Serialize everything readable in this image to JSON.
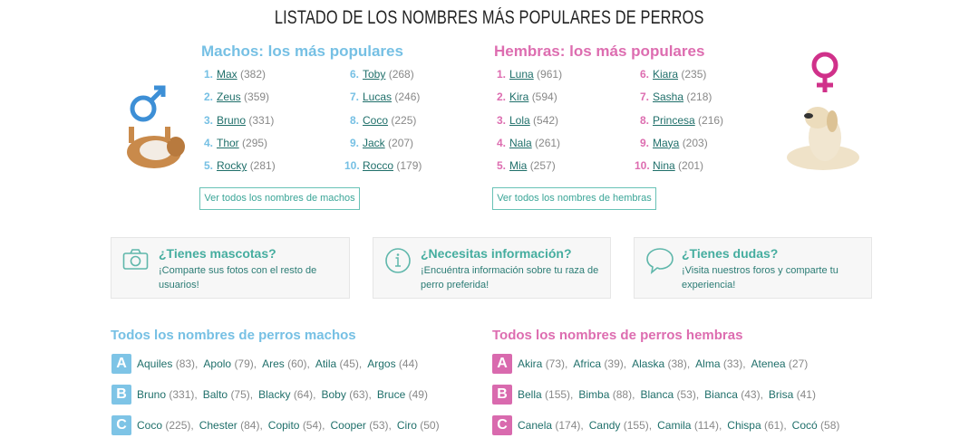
{
  "title": "LISTADO DE LOS NOMBRES MÁS POPULARES DE PERROS",
  "colors": {
    "male": "#76c0e4",
    "female": "#dd6db0",
    "teal": "#45ad9f",
    "link": "#1f6f6a"
  },
  "male": {
    "heading": "Machos: los más populares",
    "button": "Ver todos los nombres de machos",
    "icon": "male-symbol-icon",
    "top": [
      {
        "n": "1.",
        "name": "Max",
        "count": "(382)"
      },
      {
        "n": "2.",
        "name": "Zeus",
        "count": "(359)"
      },
      {
        "n": "3.",
        "name": "Bruno",
        "count": "(331)"
      },
      {
        "n": "4.",
        "name": "Thor",
        "count": "(295)"
      },
      {
        "n": "5.",
        "name": "Rocky",
        "count": "(281)"
      },
      {
        "n": "6.",
        "name": "Toby",
        "count": "(268)"
      },
      {
        "n": "7.",
        "name": "Lucas",
        "count": "(246)"
      },
      {
        "n": "8.",
        "name": "Coco",
        "count": "(225)"
      },
      {
        "n": "9.",
        "name": "Jack",
        "count": "(207)"
      },
      {
        "n": "10.",
        "name": "Rocco",
        "count": "(179)"
      }
    ]
  },
  "female": {
    "heading": "Hembras: los más populares",
    "button": "Ver todos los nombres de hembras",
    "icon": "female-symbol-icon",
    "top": [
      {
        "n": "1.",
        "name": "Luna",
        "count": "(961)"
      },
      {
        "n": "2.",
        "name": "Kira",
        "count": "(594)"
      },
      {
        "n": "3.",
        "name": "Lola",
        "count": "(542)"
      },
      {
        "n": "4.",
        "name": "Nala",
        "count": "(261)"
      },
      {
        "n": "5.",
        "name": "Mia",
        "count": "(257)"
      },
      {
        "n": "6.",
        "name": "Kiara",
        "count": "(235)"
      },
      {
        "n": "7.",
        "name": "Sasha",
        "count": "(218)"
      },
      {
        "n": "8.",
        "name": "Princesa",
        "count": "(216)"
      },
      {
        "n": "9.",
        "name": "Maya",
        "count": "(203)"
      },
      {
        "n": "10.",
        "name": "Nina",
        "count": "(201)"
      }
    ]
  },
  "cards": [
    {
      "title": "¿Tienes mascotas?",
      "text": "¡Comparte sus fotos con el resto de usuarios!",
      "icon": "camera-icon"
    },
    {
      "title": "¿Necesitas información?",
      "text": "¡Encuéntra información sobre tu raza de perro preferida!",
      "icon": "info-icon"
    },
    {
      "title": "¿Tienes dudas?",
      "text": "¡Visita nuestros foros y comparte tu experiencia!",
      "icon": "speech-bubble-icon"
    }
  ],
  "all_male": {
    "heading": "Todos los nombres de perros machos",
    "rows": [
      {
        "letter": "A",
        "names": [
          [
            "Aquiles",
            "(83)"
          ],
          [
            "Apolo",
            "(79)"
          ],
          [
            "Ares",
            "(60)"
          ],
          [
            "Atila",
            "(45)"
          ],
          [
            "Argos",
            "(44)"
          ]
        ]
      },
      {
        "letter": "B",
        "names": [
          [
            "Bruno",
            "(331)"
          ],
          [
            "Balto",
            "(75)"
          ],
          [
            "Blacky",
            "(64)"
          ],
          [
            "Boby",
            "(63)"
          ],
          [
            "Bruce",
            "(49)"
          ]
        ]
      },
      {
        "letter": "C",
        "names": [
          [
            "Coco",
            "(225)"
          ],
          [
            "Chester",
            "(84)"
          ],
          [
            "Copito",
            "(54)"
          ],
          [
            "Cooper",
            "(53)"
          ],
          [
            "Ciro",
            "(50)"
          ]
        ]
      }
    ]
  },
  "all_female": {
    "heading": "Todos los nombres de perros hembras",
    "rows": [
      {
        "letter": "A",
        "names": [
          [
            "Akira",
            "(73)"
          ],
          [
            "Africa",
            "(39)"
          ],
          [
            "Alaska",
            "(38)"
          ],
          [
            "Alma",
            "(33)"
          ],
          [
            "Atenea",
            "(27)"
          ]
        ]
      },
      {
        "letter": "B",
        "names": [
          [
            "Bella",
            "(155)"
          ],
          [
            "Bimba",
            "(88)"
          ],
          [
            "Blanca",
            "(53)"
          ],
          [
            "Bianca",
            "(43)"
          ],
          [
            "Brisa",
            "(41)"
          ]
        ]
      },
      {
        "letter": "C",
        "names": [
          [
            "Canela",
            "(174)"
          ],
          [
            "Candy",
            "(155)"
          ],
          [
            "Camila",
            "(114)"
          ],
          [
            "Chispa",
            "(61)"
          ],
          [
            "Cocó",
            "(58)"
          ]
        ]
      }
    ]
  }
}
